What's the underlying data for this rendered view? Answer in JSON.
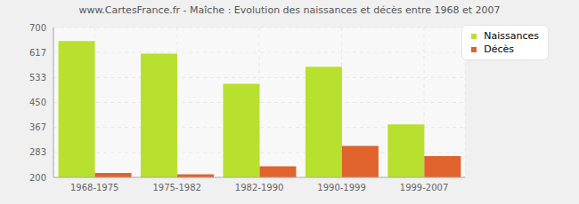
{
  "chart_data": {
    "type": "bar",
    "title": "www.CartesFrance.fr - Maîche : Evolution des naissances et décès entre 1968 et 2007",
    "categories": [
      "1968-1975",
      "1975-1982",
      "1982-1990",
      "1990-1999",
      "1999-2007"
    ],
    "series": [
      {
        "name": "Naissances",
        "color": "#b8e02e",
        "values": [
          655,
          613,
          512,
          569,
          377
        ]
      },
      {
        "name": "Décès",
        "color": "#e0632e",
        "values": [
          215,
          210,
          237,
          305,
          271
        ]
      }
    ],
    "ylim": [
      200,
      700
    ],
    "yticks": [
      200,
      283,
      367,
      450,
      533,
      617,
      700
    ],
    "grid": true,
    "legend": "upper right"
  }
}
